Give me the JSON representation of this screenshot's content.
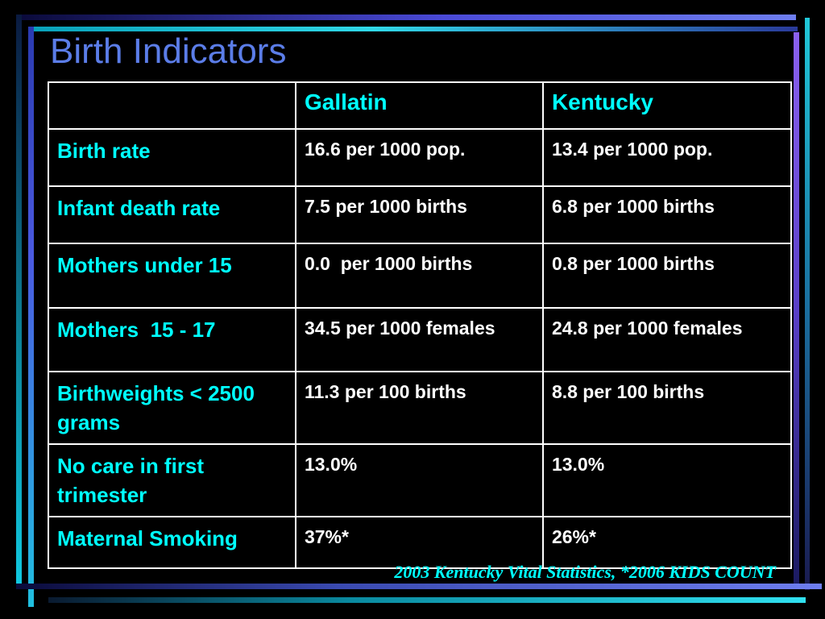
{
  "title": "Birth Indicators",
  "table": {
    "headers": [
      "",
      "Gallatin",
      "Kentucky"
    ],
    "rows": [
      {
        "label": "Birth rate",
        "gallatin": "16.6 per 1000 pop.",
        "kentucky": "13.4 per 1000 pop."
      },
      {
        "label": "Infant death rate",
        "gallatin": "7.5 per 1000 births",
        "kentucky": "6.8 per 1000 births"
      },
      {
        "label": "Mothers under 15",
        "gallatin": "0.0  per 1000 births",
        "kentucky": "0.8 per 1000 births"
      },
      {
        "label": "Mothers  15 - 17",
        "gallatin": "34.5 per 1000 females",
        "kentucky": "24.8 per 1000 females"
      },
      {
        "label": "Birthweights < 2500 grams",
        "gallatin": "11.3 per 100 births",
        "kentucky": "8.8 per 100 births"
      },
      {
        "label": "No care in first trimester",
        "gallatin": "13.0%",
        "kentucky": "13.0%"
      },
      {
        "label": "Maternal Smoking",
        "gallatin": "37%*",
        "kentucky": "26%*"
      }
    ]
  },
  "source": "2003 Kentucky Vital Statistics, *2006 KIDS COUNT",
  "colors": {
    "background": "#000000",
    "title": "#5b7de8",
    "accent_text": "#00ffff",
    "value_text": "#ffffff",
    "border": "#ffffff"
  }
}
